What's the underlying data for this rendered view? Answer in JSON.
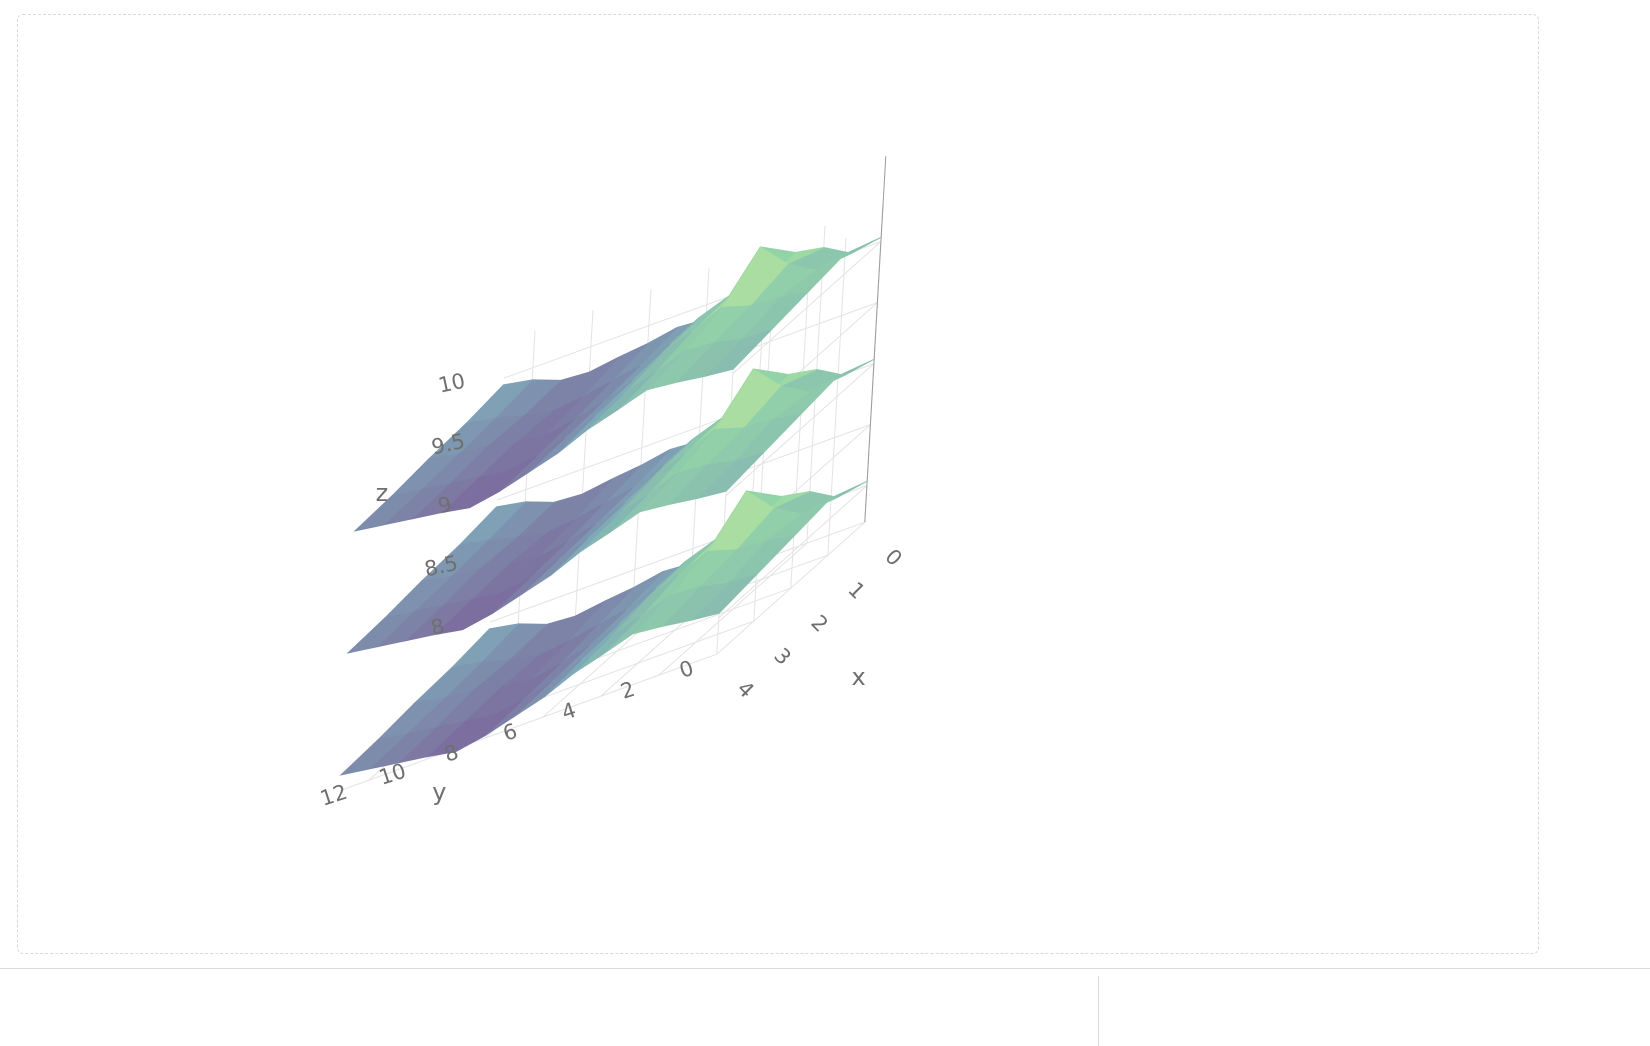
{
  "chart_data": {
    "type": "surface3d",
    "colorscale": "viridis-pastel",
    "colors": [
      "#7b5b96",
      "#7fa8b8",
      "#93d6a6",
      "#f2f58e"
    ],
    "grid": true,
    "axes": {
      "x": {
        "title": "x",
        "range": [
          0,
          4
        ],
        "ticks": [
          "0",
          "1",
          "2",
          "3",
          "4"
        ]
      },
      "y": {
        "title": "y",
        "range": [
          0,
          13
        ],
        "ticks": [
          "0",
          "2",
          "4",
          "6",
          "8",
          "10",
          "12"
        ]
      },
      "z": {
        "title": "z",
        "range": [
          7.7,
          10.3
        ],
        "ticks": [
          "8",
          "8.5",
          "9",
          "9.5",
          "10"
        ]
      }
    },
    "series": [
      {
        "z_offset": 0,
        "z_base": 7.9
      },
      {
        "z_offset": 1,
        "z_base": 8.9
      },
      {
        "z_offset": 2,
        "z_base": 9.9
      }
    ],
    "surface_rows": [
      [
        0.45,
        0.4,
        0.55,
        0.6,
        0.42,
        0.35,
        0.28,
        0.3,
        0.25,
        0.22,
        0.18,
        0.2,
        0.3,
        0.35
      ],
      [
        0.6,
        0.55,
        0.7,
        0.95,
        0.6,
        0.5,
        0.35,
        0.25,
        0.2,
        0.15,
        0.12,
        0.18,
        0.25,
        0.3
      ],
      [
        0.55,
        0.6,
        0.62,
        0.7,
        0.58,
        0.48,
        0.32,
        0.22,
        0.15,
        0.1,
        0.14,
        0.2,
        0.22,
        0.28
      ],
      [
        0.5,
        0.52,
        0.58,
        0.6,
        0.5,
        0.42,
        0.3,
        0.2,
        0.12,
        0.08,
        0.12,
        0.16,
        0.2,
        0.24
      ],
      [
        0.45,
        0.48,
        0.52,
        0.55,
        0.46,
        0.38,
        0.26,
        0.18,
        0.1,
        0.05,
        0.1,
        0.14,
        0.18,
        0.22
      ]
    ]
  }
}
